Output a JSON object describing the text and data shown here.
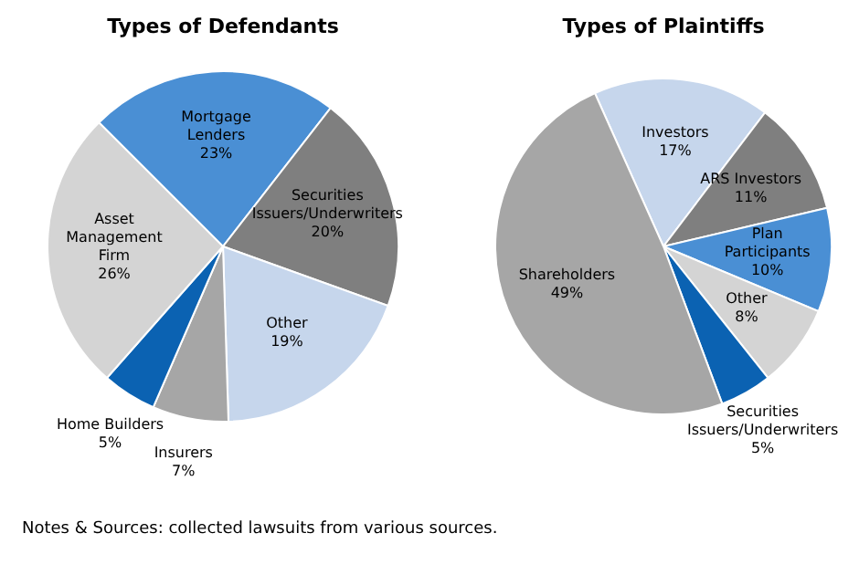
{
  "chart_data": [
    {
      "type": "pie",
      "title": "Types of Defendants",
      "categories": [
        "Mortgage Lenders",
        "Securities Issuers/Underwriters",
        "Other",
        "Insurers",
        "Home Builders",
        "Asset Management Firm"
      ],
      "values": [
        23,
        20,
        19,
        7,
        5,
        26
      ],
      "colors": [
        "#4a8fd4",
        "#7f7f7f",
        "#c6d6ec",
        "#a6a6a6",
        "#0b62b2",
        "#d4d4d4"
      ],
      "value_labels": [
        "23%",
        "20%",
        "19%",
        "7%",
        "5%",
        "26%"
      ]
    },
    {
      "type": "pie",
      "title": "Types of Plaintiffs",
      "categories": [
        "Investors",
        "ARS Investors",
        "Plan Participants",
        "Other",
        "Securities Issuers/Underwriters",
        "Shareholders"
      ],
      "values": [
        17,
        11,
        10,
        8,
        5,
        49
      ],
      "colors": [
        "#c6d6ec",
        "#7f7f7f",
        "#4a8fd4",
        "#d4d4d4",
        "#0b62b2",
        "#a6a6a6"
      ],
      "value_labels": [
        "17%",
        "11%",
        "10%",
        "8%",
        "5%",
        "49%"
      ],
      "annotations": [
        "Notes & Sources: collected lawsuits from various sources."
      ]
    }
  ]
}
